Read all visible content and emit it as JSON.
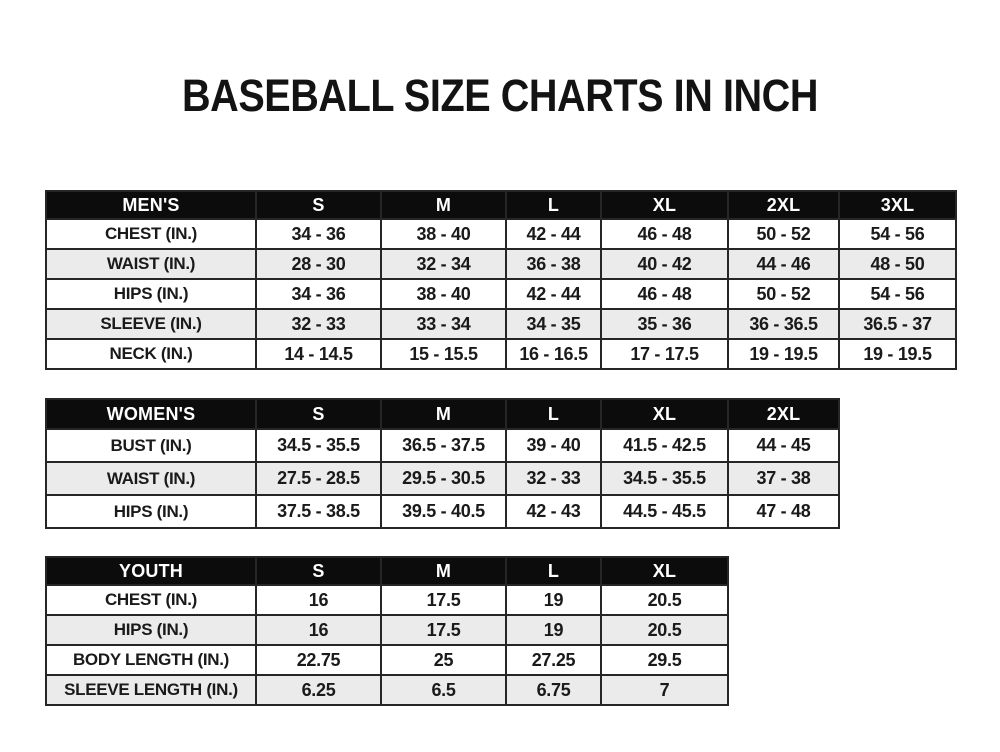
{
  "page_title": "BASEBALL SIZE CHARTS IN INCH",
  "colors": {
    "page_bg": "#ffffff",
    "header_bg": "#0c0c0c",
    "header_text": "#ffffff",
    "row_bg": "#ffffff",
    "row_alt_bg": "#ebebeb",
    "border": "#262626",
    "text": "#1a1a1a"
  },
  "chart_data": [
    {
      "type": "table",
      "name": "mens",
      "columns": [
        "MEN'S",
        "S",
        "M",
        "L",
        "XL",
        "2XL",
        "3XL"
      ],
      "rows": [
        [
          "CHEST (IN.)",
          "34 - 36",
          "38 - 40",
          "42 - 44",
          "46 - 48",
          "50 - 52",
          "54 - 56"
        ],
        [
          "WAIST (IN.)",
          "28 - 30",
          "32 - 34",
          "36 - 38",
          "40 - 42",
          "44 - 46",
          "48 - 50"
        ],
        [
          "HIPS (IN.)",
          "34 - 36",
          "38 - 40",
          "42 - 44",
          "46 - 48",
          "50 - 52",
          "54 - 56"
        ],
        [
          "SLEEVE (IN.)",
          "32 - 33",
          "33 - 34",
          "34 - 35",
          "35 - 36",
          "36 - 36.5",
          "36.5 - 37"
        ],
        [
          "NECK (IN.)",
          "14 - 14.5",
          "15 - 15.5",
          "16 - 16.5",
          "17 - 17.5",
          "19 - 19.5",
          "19 - 19.5"
        ]
      ]
    },
    {
      "type": "table",
      "name": "womens",
      "columns": [
        "WOMEN'S",
        "S",
        "M",
        "L",
        "XL",
        "2XL"
      ],
      "rows": [
        [
          "BUST (IN.)",
          "34.5 - 35.5",
          "36.5 - 37.5",
          "39 - 40",
          "41.5 - 42.5",
          "44 - 45"
        ],
        [
          "WAIST (IN.)",
          "27.5 - 28.5",
          "29.5 - 30.5",
          "32 - 33",
          "34.5 - 35.5",
          "37 - 38"
        ],
        [
          "HIPS (IN.)",
          "37.5 - 38.5",
          "39.5 - 40.5",
          "42 - 43",
          "44.5 - 45.5",
          "47 - 48"
        ]
      ]
    },
    {
      "type": "table",
      "name": "youth",
      "columns": [
        "YOUTH",
        "S",
        "M",
        "L",
        "XL"
      ],
      "rows": [
        [
          "CHEST (IN.)",
          "16",
          "17.5",
          "19",
          "20.5"
        ],
        [
          "HIPS (IN.)",
          "16",
          "17.5",
          "19",
          "20.5"
        ],
        [
          "BODY LENGTH (IN.)",
          "22.75",
          "25",
          "27.25",
          "29.5"
        ],
        [
          "SLEEVE LENGTH (IN.)",
          "6.25",
          "6.5",
          "6.75",
          "7"
        ]
      ]
    }
  ]
}
